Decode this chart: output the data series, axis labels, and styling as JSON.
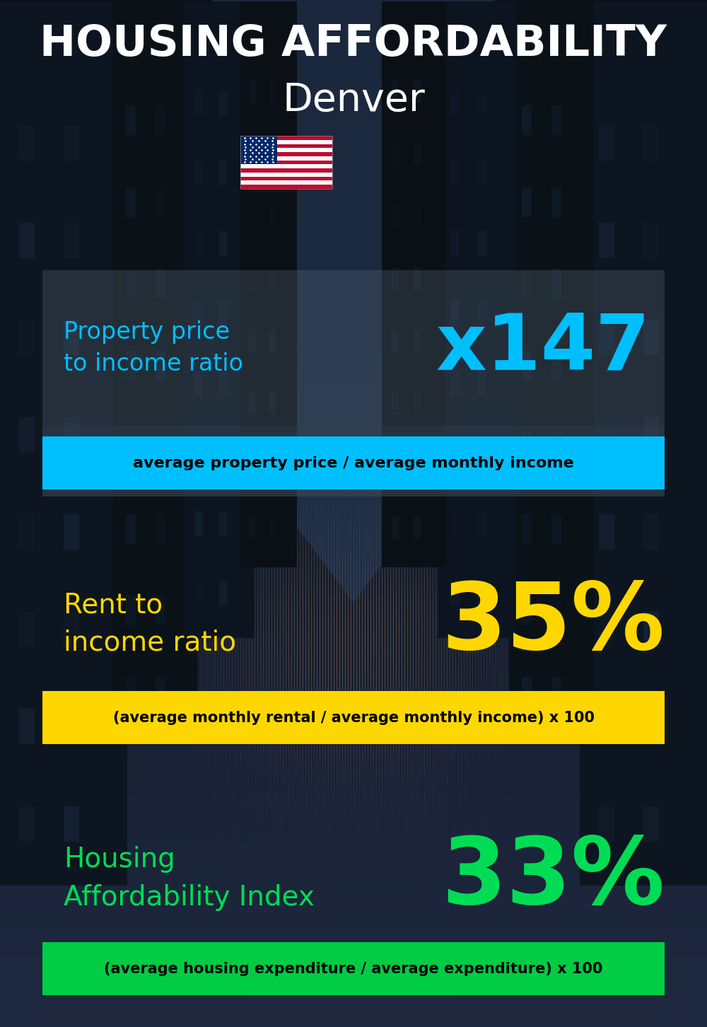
{
  "title_line1": "HOUSING AFFORDABILITY",
  "title_line2": "Denver",
  "section1_label": "Property price\nto income ratio",
  "section1_value": "x147",
  "section1_formula": "average property price / average monthly income",
  "section1_label_color": "#00BFFF",
  "section1_value_color": "#00BFFF",
  "section1_banner_color": "#00BFFF",
  "section2_label": "Rent to\nincome ratio",
  "section2_value": "35%",
  "section2_label_color": "#FFD700",
  "section2_value_color": "#FFD700",
  "section2_formula": "(average monthly rental / average monthly income) x 100",
  "section2_banner_color": "#FFD700",
  "section3_label": "Housing\nAffordability Index",
  "section3_value": "33%",
  "section3_label_color": "#00DD55",
  "section3_value_color": "#00DD55",
  "section3_formula": "(average housing expenditure / average expenditure) x 100",
  "section3_banner_color": "#00CC44",
  "bg_color": "#0a0f1a",
  "title_color": "#FFFFFF",
  "formula_text_color": "#000000"
}
